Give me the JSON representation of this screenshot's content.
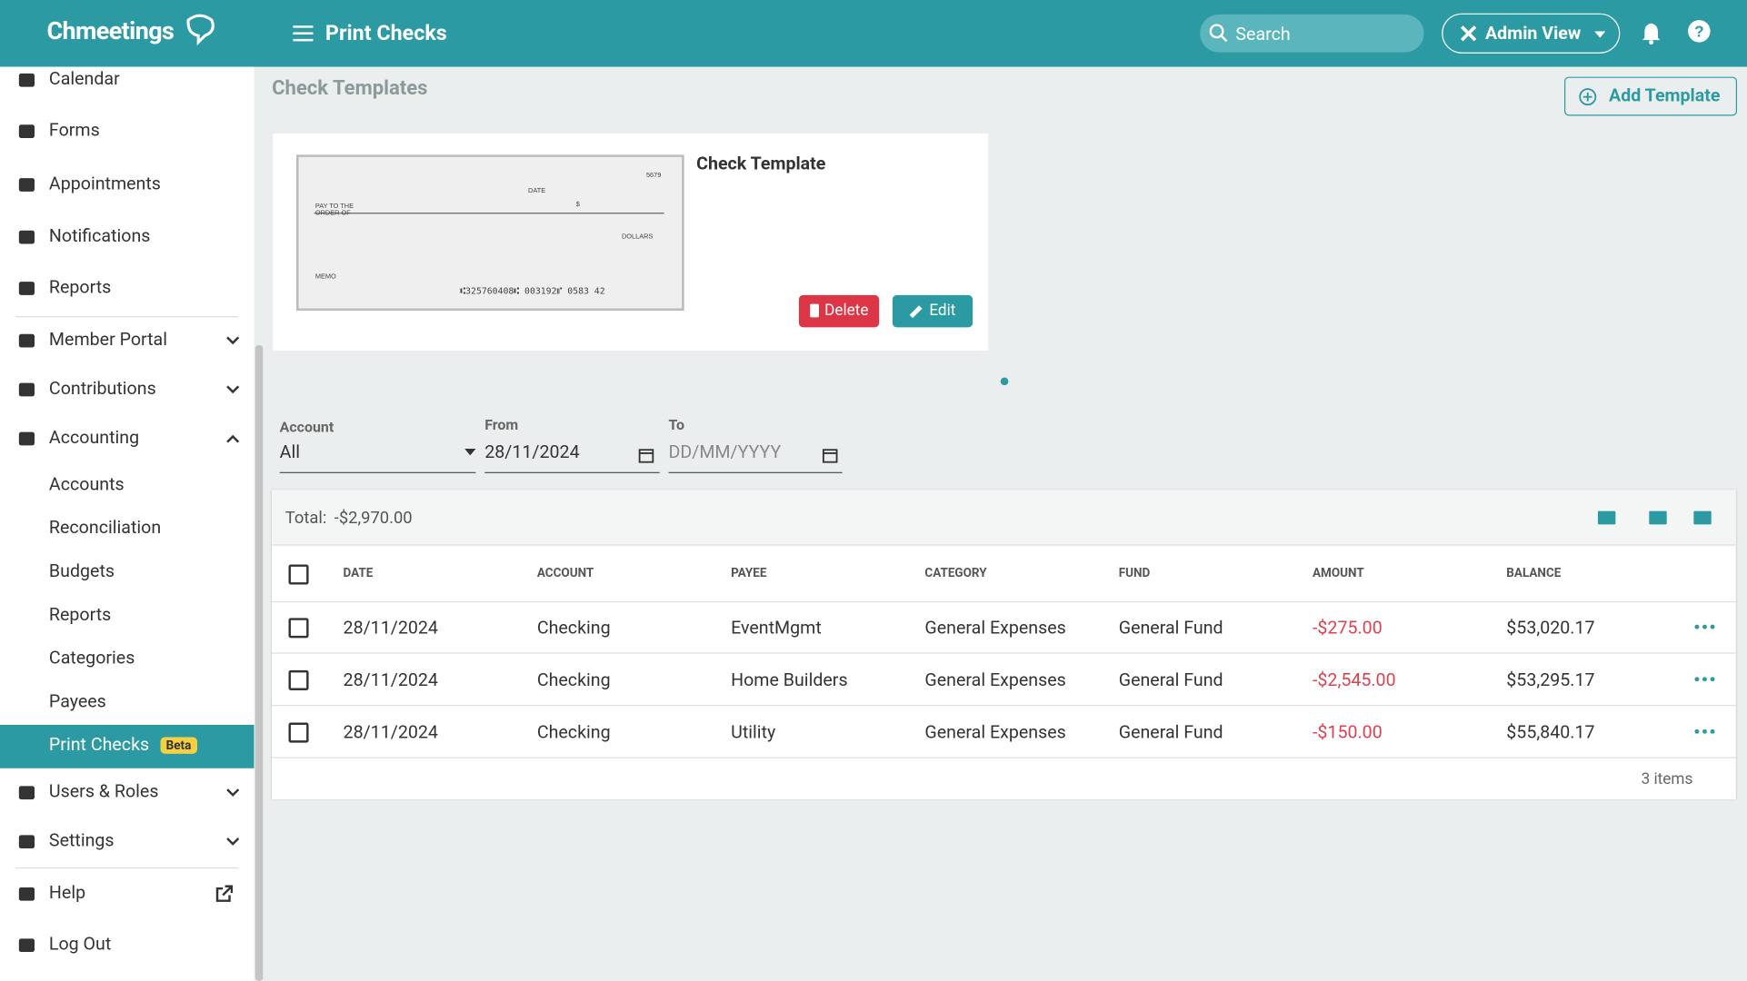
{
  "header": {
    "logo": "Chmeetings",
    "title": "Print Checks",
    "search_placeholder": "Search",
    "view_button": "Admin View"
  },
  "sidebar": {
    "items": [
      {
        "label": "Calendar"
      },
      {
        "label": "Forms"
      },
      {
        "label": "Appointments"
      },
      {
        "label": "Notifications"
      },
      {
        "label": "Reports"
      },
      {
        "label": "Member Portal"
      },
      {
        "label": "Contributions"
      },
      {
        "label": "Accounting"
      },
      {
        "label": "Accounts"
      },
      {
        "label": "Reconciliation"
      },
      {
        "label": "Budgets"
      },
      {
        "label": "Reports"
      },
      {
        "label": "Categories"
      },
      {
        "label": "Payees"
      },
      {
        "label": "Print Checks",
        "badge": "Beta"
      },
      {
        "label": "Users & Roles"
      },
      {
        "label": "Settings"
      },
      {
        "label": "Help"
      },
      {
        "label": "Log Out"
      }
    ]
  },
  "page": {
    "section_title": "Check Templates",
    "add_button": "Add Template"
  },
  "template": {
    "name": "Check Template",
    "delete": "Delete",
    "edit": "Edit",
    "preview": {
      "number": "5679",
      "date": "DATE",
      "pay_to": "PAY TO THE ORDER OF",
      "dollar_sign": "$",
      "dollars": "DOLLARS",
      "memo": "MEMO",
      "micr": "⑆325760408⑆  003192⑈  0583  42"
    }
  },
  "filters": {
    "account_label": "Account",
    "account_value": "All",
    "from_label": "From",
    "from_value": "28/11/2024",
    "to_label": "To",
    "to_placeholder": "DD/MM/YYYY"
  },
  "table": {
    "total_label": "Total:",
    "total_value": "-$2,970.00",
    "columns": [
      "DATE",
      "ACCOUNT",
      "PAYEE",
      "CATEGORY",
      "FUND",
      "AMOUNT",
      "BALANCE"
    ],
    "rows": [
      [
        "28/11/2024",
        "Checking",
        "EventMgmt",
        "General Expenses",
        "General Fund",
        "-$275.00",
        "$53,020.17"
      ],
      [
        "28/11/2024",
        "Checking",
        "Home Builders",
        "General Expenses",
        "General Fund",
        "-$2,545.00",
        "$53,295.17"
      ],
      [
        "28/11/2024",
        "Checking",
        "Utility",
        "General Expenses",
        "General Fund",
        "-$150.00",
        "$55,840.17"
      ]
    ],
    "footer": "3 items"
  }
}
